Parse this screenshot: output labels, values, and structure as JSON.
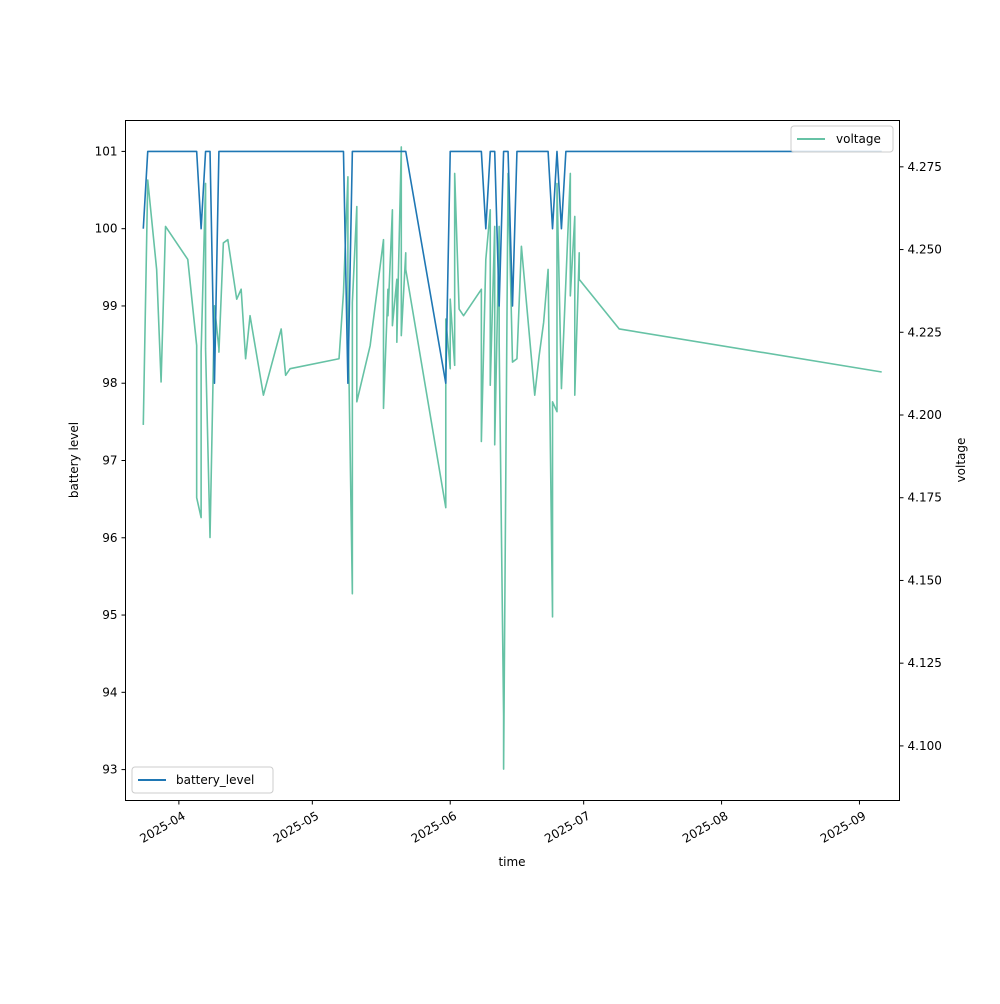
{
  "chart_data": {
    "type": "line",
    "xlabel": "time",
    "ylabel": "battery level",
    "y2label": "voltage",
    "xlim": [
      "2025-03-20",
      "2025-09-10"
    ],
    "ylim": [
      92.6,
      101.4
    ],
    "y2lim": [
      4.0835,
      4.289
    ],
    "x_ticks": [
      "2025-04-01",
      "2025-05-01",
      "2025-06-01",
      "2025-07-01",
      "2025-08-01",
      "2025-09-01"
    ],
    "x_tick_labels": [
      "2025-04",
      "2025-05",
      "2025-06",
      "2025-07",
      "2025-08",
      "2025-09"
    ],
    "y_ticks": [
      93,
      94,
      95,
      96,
      97,
      98,
      99,
      100,
      101
    ],
    "y2_ticks": [
      4.1,
      4.125,
      4.15,
      4.175,
      4.2,
      4.225,
      4.25,
      4.275
    ],
    "y2_tick_labels": [
      "4.100",
      "4.125",
      "4.150",
      "4.175",
      "4.200",
      "4.225",
      "4.250",
      "4.275"
    ],
    "grid": false,
    "series": [
      {
        "name": "battery_level",
        "axis": "left",
        "color": "#1f77b4",
        "legend_position": "lower-left",
        "x": [
          "2025-03-24",
          "2025-03-25",
          "2025-04-05",
          "2025-04-06",
          "2025-04-07",
          "2025-04-08",
          "2025-04-09",
          "2025-04-10",
          "2025-04-11",
          "2025-04-12",
          "2025-05-08",
          "2025-05-09",
          "2025-05-10",
          "2025-05-11",
          "2025-05-22",
          "2025-05-31",
          "2025-06-01",
          "2025-06-08",
          "2025-06-09",
          "2025-06-10",
          "2025-06-11",
          "2025-06-12",
          "2025-06-13",
          "2025-06-14",
          "2025-06-15",
          "2025-06-16",
          "2025-06-17",
          "2025-06-23",
          "2025-06-24",
          "2025-06-25",
          "2025-06-26",
          "2025-06-27",
          "2025-06-28",
          "2025-09-06"
        ],
        "y": [
          100,
          101,
          101,
          100,
          101,
          101,
          98,
          101,
          101,
          101,
          101,
          98,
          101,
          101,
          101,
          98,
          101,
          101,
          100,
          101,
          101,
          99,
          101,
          101,
          99,
          101,
          101,
          101,
          100,
          101,
          100,
          101,
          101,
          101
        ]
      },
      {
        "name": "voltage",
        "axis": "right",
        "color": "#66c2a5",
        "legend_position": "upper-right",
        "x": [
          "2025-03-24",
          "2025-03-25",
          "2025-03-27",
          "2025-03-28",
          "2025-03-29",
          "2025-04-03",
          "2025-04-05",
          "2025-04-05",
          "2025-04-06",
          "2025-04-06",
          "2025-04-07",
          "2025-04-07",
          "2025-04-08",
          "2025-04-09",
          "2025-04-10",
          "2025-04-10",
          "2025-04-11",
          "2025-04-12",
          "2025-04-14",
          "2025-04-15",
          "2025-04-16",
          "2025-04-17",
          "2025-04-20",
          "2025-04-24",
          "2025-04-25",
          "2025-04-26",
          "2025-05-07",
          "2025-05-08",
          "2025-05-09",
          "2025-05-09",
          "2025-05-10",
          "2025-05-10",
          "2025-05-10",
          "2025-05-11",
          "2025-05-11",
          "2025-05-14",
          "2025-05-17",
          "2025-05-17",
          "2025-05-18",
          "2025-05-18",
          "2025-05-19",
          "2025-05-19",
          "2025-05-20",
          "2025-05-20",
          "2025-05-21",
          "2025-05-21",
          "2025-05-22",
          "2025-05-22",
          "2025-05-31",
          "2025-05-31",
          "2025-06-01",
          "2025-06-01",
          "2025-06-02",
          "2025-06-02",
          "2025-06-03",
          "2025-06-04",
          "2025-06-08",
          "2025-06-08",
          "2025-06-09",
          "2025-06-10",
          "2025-06-10",
          "2025-06-11",
          "2025-06-11",
          "2025-06-12",
          "2025-06-12",
          "2025-06-13",
          "2025-06-13",
          "2025-06-14",
          "2025-06-15",
          "2025-06-16",
          "2025-06-17",
          "2025-06-20",
          "2025-06-21",
          "2025-06-22",
          "2025-06-23",
          "2025-06-24",
          "2025-06-24",
          "2025-06-25",
          "2025-06-25",
          "2025-06-26",
          "2025-06-28",
          "2025-06-28",
          "2025-06-29",
          "2025-06-29",
          "2025-06-30",
          "2025-06-30",
          "2025-07-09",
          "2025-09-06"
        ],
        "y": [
          4.197,
          4.271,
          4.244,
          4.21,
          4.257,
          4.247,
          4.221,
          4.175,
          4.169,
          4.219,
          4.27,
          4.22,
          4.163,
          4.233,
          4.22,
          4.219,
          4.252,
          4.253,
          4.235,
          4.238,
          4.217,
          4.23,
          4.206,
          4.226,
          4.212,
          4.214,
          4.217,
          4.237,
          4.272,
          4.232,
          4.146,
          4.204,
          4.234,
          4.263,
          4.204,
          4.221,
          4.253,
          4.202,
          4.238,
          4.23,
          4.262,
          4.227,
          4.241,
          4.222,
          4.281,
          4.224,
          4.249,
          4.244,
          4.172,
          4.229,
          4.214,
          4.235,
          4.215,
          4.273,
          4.232,
          4.23,
          4.238,
          4.192,
          4.247,
          4.262,
          4.209,
          4.257,
          4.191,
          4.257,
          4.222,
          4.109,
          4.093,
          4.273,
          4.216,
          4.217,
          4.251,
          4.206,
          4.218,
          4.228,
          4.244,
          4.139,
          4.204,
          4.201,
          4.27,
          4.208,
          4.273,
          4.236,
          4.26,
          4.206,
          4.249,
          4.241,
          4.226,
          4.213
        ]
      }
    ]
  }
}
